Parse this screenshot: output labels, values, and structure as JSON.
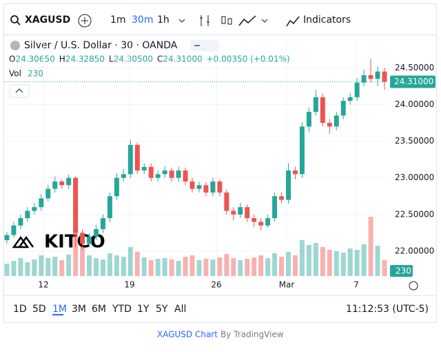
{
  "toolbar": {
    "symbol": "XAGUSD",
    "intervals": [
      "1m",
      "30m",
      "1h"
    ],
    "indicators": "Indicators"
  },
  "legend": {
    "title": "Silver / U.S. Dollar · 30 · OANDA",
    "ohlc": [
      {
        "label": "O",
        "value": "24.30650"
      },
      {
        "label": "H",
        "value": "24.32850"
      },
      {
        "label": "L",
        "value": "24.30500"
      },
      {
        "label": "C",
        "value": "24.31000"
      }
    ],
    "change": "+0.00350 (+0.01%)",
    "vol_label": "Vol"
  },
  "watermark": "KITCO",
  "chart_data": {
    "type": "candlestick",
    "up_color": "#26a69a",
    "down_color": "#ef5350",
    "open": [
      22.15,
      22.22,
      22.35,
      22.45,
      22.55,
      22.6,
      22.72,
      22.85,
      22.95,
      22.9,
      23.0,
      22.25,
      22.1,
      22.2,
      22.3,
      22.45,
      22.75,
      23.0,
      23.05,
      23.45,
      23.1,
      23.15,
      23.0,
      23.05,
      23.1,
      23.0,
      23.1,
      22.95,
      22.85,
      22.9,
      22.8,
      22.95,
      22.8,
      22.55,
      22.5,
      22.6,
      22.45,
      22.4,
      22.35,
      22.45,
      22.75,
      22.7,
      23.1,
      23.05,
      23.7,
      23.9,
      24.1,
      23.75,
      23.7,
      23.85,
      24.05,
      24.1,
      24.3,
      24.4,
      24.35,
      24.45
    ],
    "high": [
      22.26,
      22.4,
      22.5,
      22.6,
      22.66,
      22.78,
      22.9,
      23.02,
      22.98,
      23.05,
      23.02,
      22.3,
      22.25,
      22.36,
      22.5,
      22.8,
      23.06,
      23.12,
      23.52,
      23.48,
      23.2,
      23.2,
      23.1,
      23.16,
      23.14,
      23.15,
      23.14,
      23.0,
      22.95,
      22.94,
      23.0,
      22.98,
      22.84,
      22.6,
      22.66,
      22.64,
      22.5,
      22.45,
      22.5,
      22.8,
      22.8,
      23.2,
      23.15,
      23.76,
      23.96,
      24.2,
      24.15,
      23.8,
      23.9,
      24.1,
      24.16,
      24.36,
      24.48,
      24.62,
      24.52,
      24.5
    ],
    "low": [
      22.1,
      22.18,
      22.3,
      22.4,
      22.5,
      22.55,
      22.68,
      22.8,
      22.85,
      22.85,
      22.05,
      22.02,
      22.05,
      22.15,
      22.25,
      22.4,
      22.7,
      22.95,
      23.0,
      23.05,
      23.05,
      22.95,
      22.95,
      23.0,
      22.95,
      22.95,
      22.9,
      22.8,
      22.8,
      22.75,
      22.75,
      22.75,
      22.5,
      22.42,
      22.45,
      22.4,
      22.33,
      22.28,
      22.32,
      22.4,
      22.65,
      22.65,
      22.98,
      23.0,
      23.62,
      23.85,
      23.7,
      23.6,
      23.65,
      23.8,
      24.0,
      24.05,
      24.25,
      24.3,
      24.25,
      24.2
    ],
    "close": [
      22.22,
      22.35,
      22.45,
      22.55,
      22.6,
      22.72,
      22.85,
      22.95,
      22.9,
      23.0,
      22.25,
      22.1,
      22.2,
      22.3,
      22.45,
      22.75,
      23.0,
      23.05,
      23.45,
      23.1,
      23.15,
      23.0,
      23.05,
      23.1,
      23.0,
      23.1,
      22.95,
      22.85,
      22.9,
      22.8,
      22.95,
      22.8,
      22.55,
      22.5,
      22.6,
      22.45,
      22.4,
      22.35,
      22.45,
      22.75,
      22.7,
      23.1,
      23.05,
      23.7,
      23.9,
      24.1,
      23.75,
      23.7,
      23.85,
      24.05,
      24.1,
      24.3,
      24.4,
      24.35,
      24.45,
      24.31
    ],
    "volume": [
      180,
      220,
      260,
      200,
      240,
      300,
      260,
      280,
      230,
      310,
      720,
      420,
      300,
      260,
      240,
      330,
      300,
      280,
      420,
      350,
      270,
      230,
      250,
      260,
      240,
      220,
      280,
      300,
      230,
      250,
      240,
      270,
      320,
      260,
      230,
      250,
      270,
      300,
      260,
      330,
      280,
      350,
      300,
      520,
      450,
      480,
      420,
      380,
      360,
      340,
      400,
      380,
      460,
      860,
      440,
      230
    ],
    "last_price": {
      "value": 24.31,
      "label": "24.31000"
    },
    "xlim": [
      -0.5,
      55.5
    ],
    "xticks": [
      {
        "value": 5.32,
        "label": "12"
      },
      {
        "value": 17.87,
        "label": "19"
      },
      {
        "value": 30.51,
        "label": "26"
      },
      {
        "value": 40.75,
        "label": "Mar"
      },
      {
        "value": 50.88,
        "label": "7"
      }
    ],
    "ylim": [
      21.66,
      24.88
    ],
    "yticks": [
      {
        "value": 22.0,
        "label": "22.00000"
      },
      {
        "value": 22.5,
        "label": "22.50000"
      },
      {
        "value": 23.0,
        "label": "23.00000"
      },
      {
        "value": 23.5,
        "label": "23.50000"
      },
      {
        "value": 24.0,
        "label": "24.00000"
      },
      {
        "value": 24.5,
        "label": "24.50000"
      }
    ],
    "grid": true
  },
  "range_bar": {
    "ranges": [
      "1D",
      "5D",
      "1M",
      "3M",
      "6M",
      "YTD",
      "1Y",
      "5Y",
      "All"
    ],
    "time": "11:12:53 (UTC-5)"
  },
  "footer": {
    "link": "XAGUSD Chart",
    "by": "By TradingView"
  }
}
